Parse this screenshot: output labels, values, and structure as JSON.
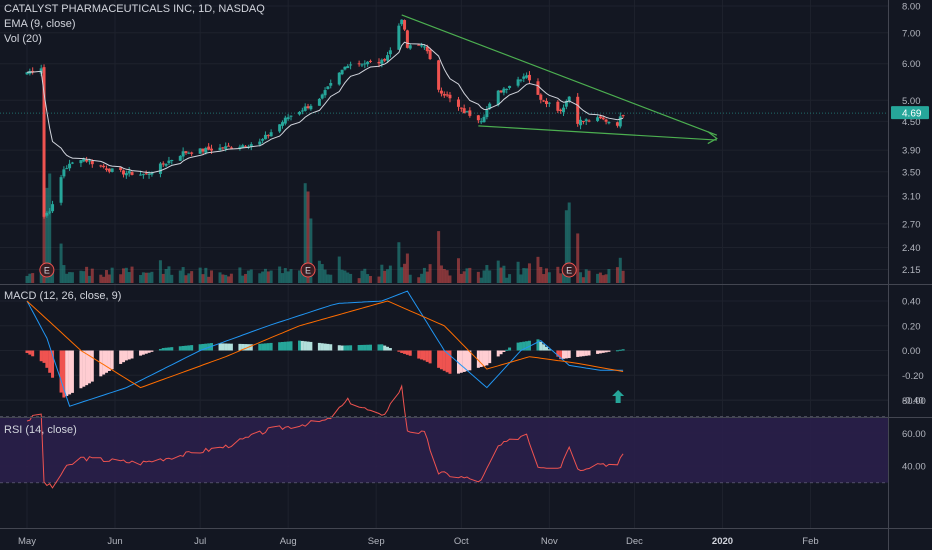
{
  "legend": {
    "main": "CATALYST PHARMACEUTICALS INC, 1D, NASDAQ",
    "ema": "EMA (9, close)",
    "vol": "Vol (20)",
    "macd": "MACD (12, 26, close, 9)",
    "rsi": "RSI (14, close)"
  },
  "last_price_label": "4.69",
  "earnings_marker": "E",
  "colors": {
    "background": "#131722",
    "up": "#26a69a",
    "down": "#ef5350",
    "grid": "#1e222d",
    "trendline": "#4caf50",
    "ema": "#d1d4dc",
    "macd_line": "#2196f3",
    "signal_line": "#ff6d00",
    "rsi_line": "#ef5350",
    "rsi_band": "#2a1f4a",
    "price_tag": "#26a69a",
    "arrow": "#26a69a"
  },
  "chart_data": [
    {
      "type": "candlestick",
      "title": "CATALYST PHARMACEUTICALS INC, 1D, NASDAQ",
      "y_axis": {
        "scale": "log",
        "ticks": [
          8.0,
          7.0,
          6.0,
          5.0,
          4.5,
          3.9,
          3.5,
          3.1,
          2.7,
          2.4,
          2.15
        ]
      },
      "y_tick_labels": [
        "8.00",
        "7.00",
        "6.00",
        "5.00",
        "4.50",
        "3.90",
        "3.50",
        "3.10",
        "2.70",
        "2.40",
        "2.15"
      ],
      "x_tick_labels": [
        "May",
        "Jun",
        "Jul",
        "Aug",
        "Sep",
        "Oct",
        "Nov",
        "Dec",
        "2020",
        "Feb"
      ],
      "anchors": [
        {
          "date": "2019-05-01",
          "price": 5.75
        },
        {
          "date": "2019-05-03",
          "price": 5.8
        },
        {
          "date": "2019-05-06",
          "price": 5.9
        },
        {
          "date": "2019-05-07",
          "price": 2.8
        },
        {
          "date": "2019-05-10",
          "price": 2.95
        },
        {
          "date": "2019-05-14",
          "price": 3.55
        },
        {
          "date": "2019-05-20",
          "price": 3.75
        },
        {
          "date": "2019-06-01",
          "price": 3.5
        },
        {
          "date": "2019-06-12",
          "price": 3.45
        },
        {
          "date": "2019-06-25",
          "price": 3.85
        },
        {
          "date": "2019-07-10",
          "price": 3.95
        },
        {
          "date": "2019-07-22",
          "price": 4.05
        },
        {
          "date": "2019-08-01",
          "price": 4.6
        },
        {
          "date": "2019-08-12",
          "price": 5.0
        },
        {
          "date": "2019-08-22",
          "price": 6.0
        },
        {
          "date": "2019-09-03",
          "price": 6.05
        },
        {
          "date": "2019-09-06",
          "price": 6.4
        },
        {
          "date": "2019-09-10",
          "price": 7.55
        },
        {
          "date": "2019-09-12",
          "price": 6.5
        },
        {
          "date": "2019-09-18",
          "price": 6.6
        },
        {
          "date": "2019-09-23",
          "price": 5.3
        },
        {
          "date": "2019-10-01",
          "price": 4.75
        },
        {
          "date": "2019-10-08",
          "price": 4.55
        },
        {
          "date": "2019-10-14",
          "price": 5.2
        },
        {
          "date": "2019-10-24",
          "price": 5.7
        },
        {
          "date": "2019-10-28",
          "price": 5.1
        },
        {
          "date": "2019-11-05",
          "price": 4.75
        },
        {
          "date": "2019-11-08",
          "price": 5.1
        },
        {
          "date": "2019-11-11",
          "price": 4.5
        },
        {
          "date": "2019-11-19",
          "price": 4.55
        },
        {
          "date": "2019-11-25",
          "price": 4.45
        },
        {
          "date": "2019-11-27",
          "price": 4.69
        }
      ],
      "trendlines": [
        {
          "from": {
            "date": "2019-09-10",
            "price": 7.65
          },
          "to": {
            "date": "2019-12-30",
            "price": 4.2
          }
        },
        {
          "from": {
            "date": "2019-10-07",
            "price": 4.4
          },
          "to": {
            "date": "2019-12-30",
            "price": 4.1
          }
        }
      ],
      "earnings": [
        "2019-05-08",
        "2019-08-08",
        "2019-11-08"
      ],
      "last_price": 4.69
    },
    {
      "type": "bar",
      "name": "MACD",
      "y_tick_labels": [
        "0.40",
        "0.20",
        "0.00",
        "-0.20",
        "-0.40"
      ],
      "y_ticks": [
        0.4,
        0.2,
        0.0,
        -0.2,
        -0.4
      ],
      "histogram_anchors": [
        {
          "date": "2019-05-01",
          "value": -0.02
        },
        {
          "date": "2019-05-07",
          "value": -0.1
        },
        {
          "date": "2019-05-14",
          "value": -0.38
        },
        {
          "date": "2019-05-22",
          "value": -0.28
        },
        {
          "date": "2019-06-05",
          "value": -0.08
        },
        {
          "date": "2019-06-18",
          "value": 0.02
        },
        {
          "date": "2019-07-05",
          "value": 0.06
        },
        {
          "date": "2019-07-20",
          "value": 0.05
        },
        {
          "date": "2019-08-05",
          "value": 0.08
        },
        {
          "date": "2019-08-20",
          "value": 0.04
        },
        {
          "date": "2019-09-03",
          "value": 0.05
        },
        {
          "date": "2019-09-10",
          "value": -0.02
        },
        {
          "date": "2019-09-18",
          "value": -0.08
        },
        {
          "date": "2019-09-28",
          "value": -0.2
        },
        {
          "date": "2019-10-10",
          "value": -0.12
        },
        {
          "date": "2019-10-20",
          "value": 0.06
        },
        {
          "date": "2019-10-28",
          "value": 0.09
        },
        {
          "date": "2019-11-05",
          "value": -0.07
        },
        {
          "date": "2019-11-15",
          "value": -0.04
        },
        {
          "date": "2019-11-27",
          "value": 0.01
        }
      ],
      "macd_anchors": [
        {
          "date": "2019-05-01",
          "value": 0.4
        },
        {
          "date": "2019-05-08",
          "value": 0.1
        },
        {
          "date": "2019-05-16",
          "value": -0.45
        },
        {
          "date": "2019-06-05",
          "value": -0.3
        },
        {
          "date": "2019-07-01",
          "value": 0.0
        },
        {
          "date": "2019-07-25",
          "value": 0.2
        },
        {
          "date": "2019-08-18",
          "value": 0.38
        },
        {
          "date": "2019-09-03",
          "value": 0.4
        },
        {
          "date": "2019-09-12",
          "value": 0.48
        },
        {
          "date": "2019-09-25",
          "value": 0.0
        },
        {
          "date": "2019-10-10",
          "value": -0.3
        },
        {
          "date": "2019-10-22",
          "value": 0.0
        },
        {
          "date": "2019-10-29",
          "value": 0.08
        },
        {
          "date": "2019-11-08",
          "value": -0.12
        },
        {
          "date": "2019-11-19",
          "value": -0.16
        },
        {
          "date": "2019-11-27",
          "value": -0.16
        }
      ],
      "signal_anchors": [
        {
          "date": "2019-05-01",
          "value": 0.4
        },
        {
          "date": "2019-05-20",
          "value": 0.0
        },
        {
          "date": "2019-06-10",
          "value": -0.3
        },
        {
          "date": "2019-07-10",
          "value": -0.05
        },
        {
          "date": "2019-08-05",
          "value": 0.2
        },
        {
          "date": "2019-09-05",
          "value": 0.4
        },
        {
          "date": "2019-09-25",
          "value": 0.2
        },
        {
          "date": "2019-10-10",
          "value": -0.15
        },
        {
          "date": "2019-10-25",
          "value": -0.05
        },
        {
          "date": "2019-11-10",
          "value": -0.1
        },
        {
          "date": "2019-11-27",
          "value": -0.17
        }
      ]
    },
    {
      "type": "line",
      "name": "RSI",
      "y_tick_labels": [
        "80.00",
        "60.00",
        "40.00"
      ],
      "y_ticks": [
        80,
        60,
        40
      ],
      "band": [
        30,
        70
      ],
      "anchors": [
        {
          "date": "2019-05-01",
          "value": 68
        },
        {
          "date": "2019-05-06",
          "value": 72
        },
        {
          "date": "2019-05-07",
          "value": 30
        },
        {
          "date": "2019-05-10",
          "value": 27
        },
        {
          "date": "2019-05-14",
          "value": 38
        },
        {
          "date": "2019-05-20",
          "value": 45
        },
        {
          "date": "2019-06-10",
          "value": 42
        },
        {
          "date": "2019-07-10",
          "value": 52
        },
        {
          "date": "2019-07-25",
          "value": 62
        },
        {
          "date": "2019-08-15",
          "value": 68
        },
        {
          "date": "2019-08-22",
          "value": 80
        },
        {
          "date": "2019-09-03",
          "value": 70
        },
        {
          "date": "2019-09-10",
          "value": 88
        },
        {
          "date": "2019-09-12",
          "value": 62
        },
        {
          "date": "2019-09-18",
          "value": 60
        },
        {
          "date": "2019-09-23",
          "value": 36
        },
        {
          "date": "2019-10-08",
          "value": 31
        },
        {
          "date": "2019-10-14",
          "value": 52
        },
        {
          "date": "2019-10-24",
          "value": 60
        },
        {
          "date": "2019-10-28",
          "value": 40
        },
        {
          "date": "2019-11-05",
          "value": 40
        },
        {
          "date": "2019-11-08",
          "value": 53
        },
        {
          "date": "2019-11-11",
          "value": 38
        },
        {
          "date": "2019-11-19",
          "value": 42
        },
        {
          "date": "2019-11-25",
          "value": 40
        },
        {
          "date": "2019-11-27",
          "value": 48
        }
      ]
    }
  ]
}
